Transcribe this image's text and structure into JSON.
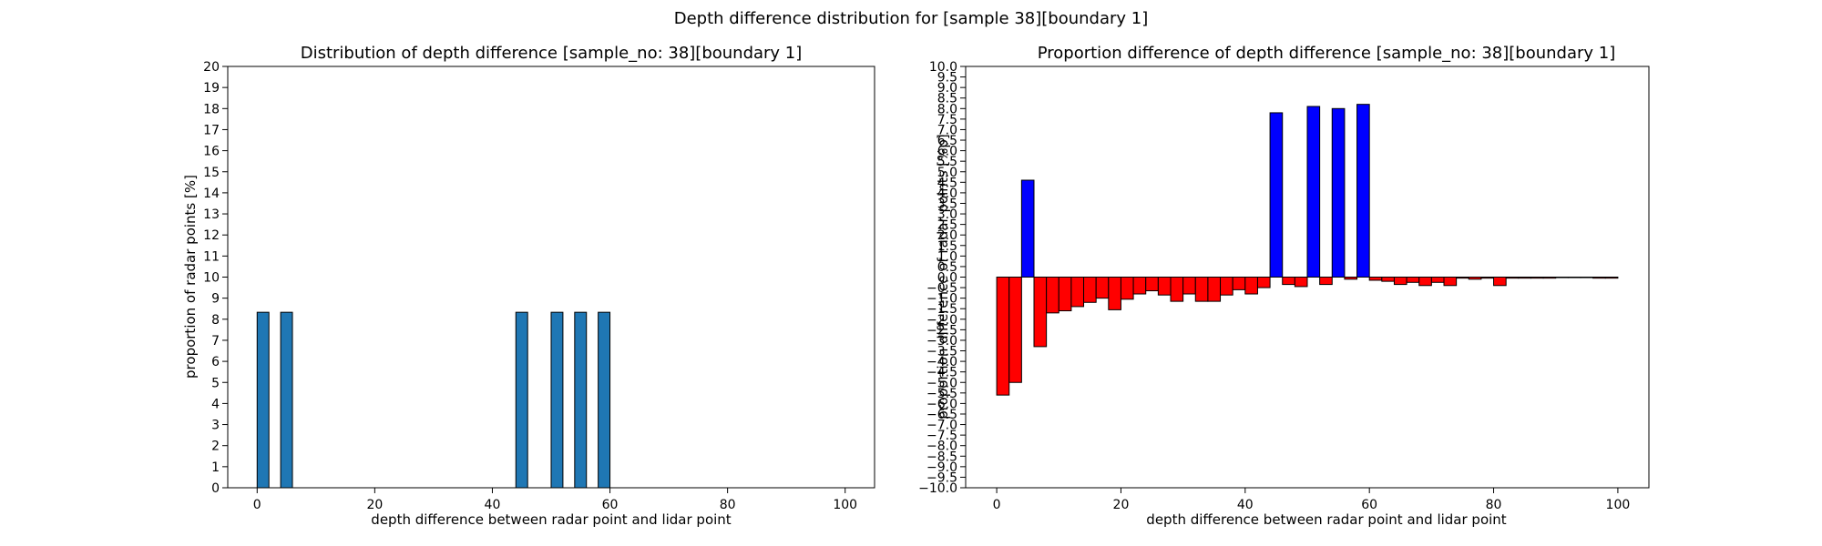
{
  "figure": {
    "suptitle": "Depth difference distribution for [sample 38][boundary 1]"
  },
  "chart_data": [
    {
      "type": "bar",
      "title": "Distribution of depth difference [sample_no: 38][boundary 1]",
      "xlabel": "depth difference between radar point and lidar point",
      "ylabel": "proportion of radar points [%]",
      "xlim": [
        -5,
        105
      ],
      "ylim": [
        0,
        20
      ],
      "xticks": [
        0,
        20,
        40,
        60,
        80,
        100
      ],
      "yticks": [
        0,
        1,
        2,
        3,
        4,
        5,
        6,
        7,
        8,
        9,
        10,
        11,
        12,
        13,
        14,
        15,
        16,
        17,
        18,
        19,
        20
      ],
      "bar_width": 2,
      "color": "#1f77b4",
      "x": [
        1,
        5,
        45,
        51,
        55,
        59
      ],
      "values": [
        8.33,
        8.33,
        8.33,
        8.33,
        8.33,
        8.33
      ]
    },
    {
      "type": "bar",
      "title": "Proportion difference of depth difference [sample_no: 38][boundary 1]",
      "xlabel": "depth difference between radar point and lidar point",
      "ylabel": "proportion difference of radar points [%p]",
      "xlim": [
        -5,
        105
      ],
      "ylim": [
        -10,
        10
      ],
      "xticks": [
        0,
        20,
        40,
        60,
        80,
        100
      ],
      "ytick_step": 0.5,
      "bar_width": 2,
      "positive_color": "#0000ff",
      "negative_color": "#ff0000",
      "x": [
        1,
        3,
        5,
        7,
        9,
        11,
        13,
        15,
        17,
        19,
        21,
        23,
        25,
        27,
        29,
        31,
        33,
        35,
        37,
        39,
        41,
        43,
        45,
        47,
        49,
        51,
        53,
        55,
        57,
        59,
        61,
        63,
        65,
        67,
        69,
        71,
        73,
        75,
        77,
        79,
        81,
        83,
        85,
        87,
        89,
        91,
        93,
        95,
        97,
        99
      ],
      "values": [
        -5.6,
        -5.0,
        4.6,
        -3.3,
        -1.7,
        -1.6,
        -1.4,
        -1.2,
        -1.0,
        -1.55,
        -1.05,
        -0.8,
        -0.65,
        -0.85,
        -1.15,
        -0.8,
        -1.15,
        -1.15,
        -0.85,
        -0.6,
        -0.8,
        -0.5,
        7.8,
        -0.35,
        -0.45,
        8.1,
        -0.35,
        8.0,
        -0.1,
        8.2,
        -0.15,
        -0.2,
        -0.35,
        -0.25,
        -0.4,
        -0.25,
        -0.4,
        -0.05,
        -0.1,
        -0.05,
        -0.4,
        -0.05,
        -0.05,
        -0.05,
        -0.05,
        -0.02,
        -0.02,
        -0.02,
        -0.05,
        -0.05
      ]
    }
  ]
}
